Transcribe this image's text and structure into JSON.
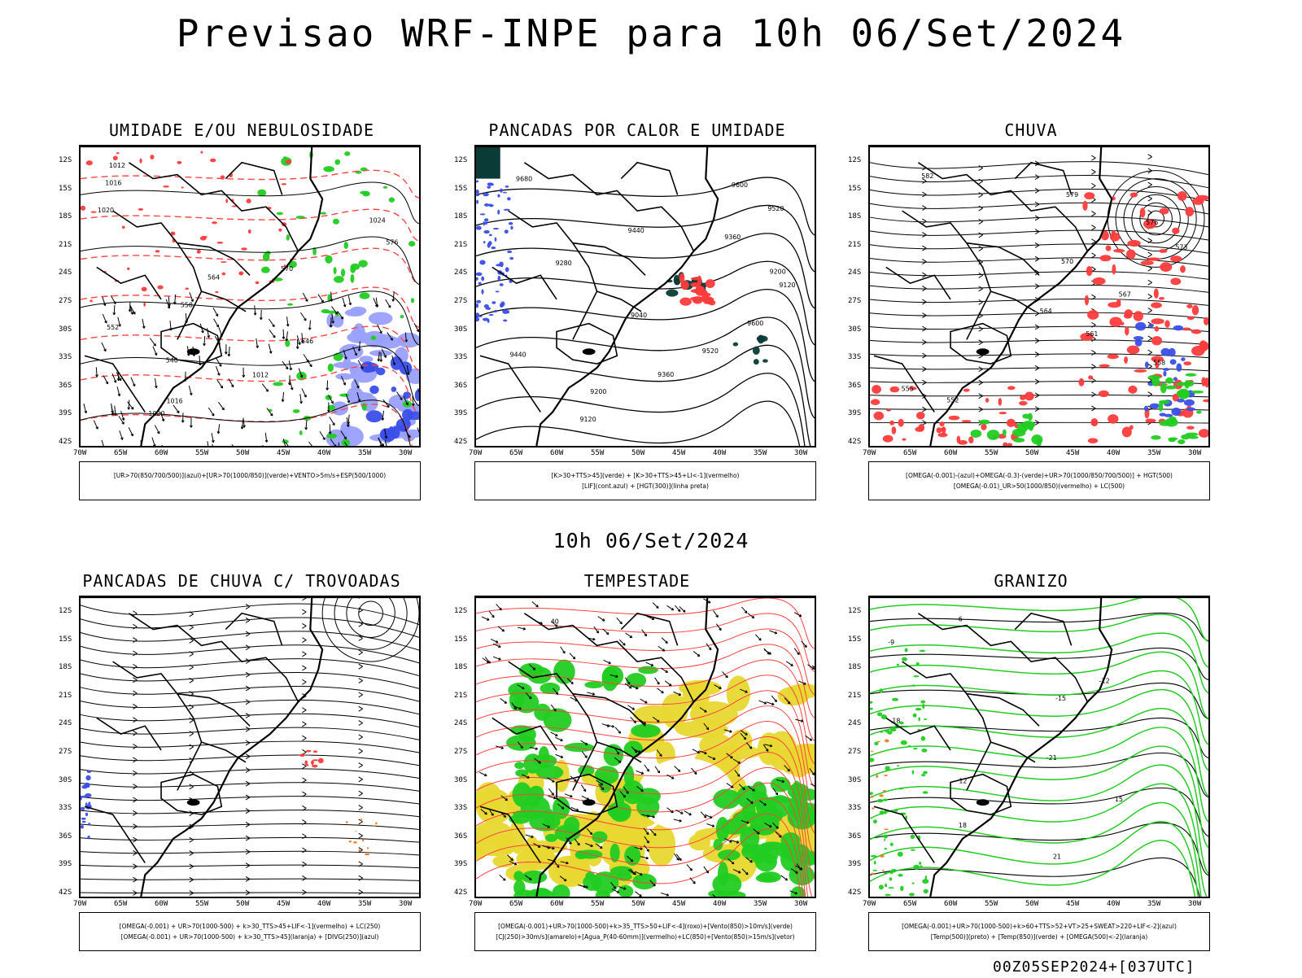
{
  "header": {
    "title": "Previsao WRF-INPE  para 10h 06/Set/2024",
    "middle_date": "10h 06/Set/2024",
    "footer": "00Z05SEP2024+[037UTC]"
  },
  "axes": {
    "lat_labels": [
      "12S",
      "15S",
      "18S",
      "21S",
      "24S",
      "27S",
      "30S",
      "33S",
      "36S",
      "39S",
      "42S"
    ],
    "lon_labels": [
      "70W",
      "65W",
      "60W",
      "55W",
      "50W",
      "45W",
      "40W",
      "35W",
      "30W"
    ]
  },
  "colors": {
    "red": "#ff3b3b",
    "green": "#22cc22",
    "blue": "#3a4ee8",
    "lightblue": "#9aa0ff",
    "yellow": "#e8d830",
    "orange": "#f07a20",
    "darkteal": "#0b3b36"
  },
  "panels": [
    {
      "id": "umidade",
      "title": "UMIDADE E/OU NEBULOSIDADE",
      "legend": [
        "[UR>70(850/700/500)](azul)+[UR>70(1000/850)](verde)+VENTO>5m/s+ESP(500/1000)"
      ],
      "contour_labels": [
        "1012",
        "1016",
        "1020",
        "1024",
        "576",
        "570",
        "564",
        "558",
        "552",
        "546",
        "540",
        "1012",
        "1016",
        "1020"
      ]
    },
    {
      "id": "pancadas-calor",
      "title": "PANCADAS POR CALOR E UMIDADE",
      "legend": [
        "[K>30+TTS>45](verde) + [K>30+TTS>45+LI<-1](vermelho)",
        "[LIF](cont.azul) + [HGT(300)](linha preta)"
      ],
      "contour_labels": [
        "9680",
        "9600",
        "9520",
        "9440",
        "9360",
        "9280",
        "9200",
        "9120",
        "9040",
        "9600",
        "9520",
        "9440",
        "9360",
        "9200",
        "9120"
      ]
    },
    {
      "id": "chuva",
      "title": "CHUVA",
      "legend": [
        "[OMEGA(-0.001)-(azul)+OMEGA(-0.3)-(verde)+UR>70(1000/850/700/500)] + HGT(500)",
        "[OMEGA(-0.01)_UR>50(1000/850)(vermelho) + LC(500)"
      ],
      "contour_labels": [
        "582",
        "579",
        "576",
        "573",
        "570",
        "567",
        "564",
        "561",
        "558",
        "555",
        "552"
      ]
    },
    {
      "id": "pancadas-trovoadas",
      "title": "PANCADAS DE CHUVA C/ TROVOADAS",
      "legend": [
        "[OMEGA(-0.001) + UR>70(1000-500) + k>30_TTS>45+LIF<-1](vermelho) + LC(250)",
        "[OMEGA(-0.001) + UR>70(1000-500) + k>30_TTS>45](laranja) + [DIVG(250)](azul)"
      ]
    },
    {
      "id": "tempestade",
      "title": "TEMPESTADE",
      "legend": [
        "[OMEGA(-0.001)+UR>70(1000-500)+k>35_TTS>50+LIF<-4](roxo)+[Vento(850)>10m/s](verde)",
        "[CJ(250)>30m/s](amarelo)+[Agua_P(40-60mm)](vermelho)+LC(850)+[Vento(850)>15m/s](vetor)"
      ],
      "contour_labels": [
        "40"
      ]
    },
    {
      "id": "granizo",
      "title": "GRANIZO",
      "legend": [
        "[OMEGA(-0.001)+UR>70(1000-500)+k>60+TTS>52+VT>25+SWEAT>220+LIF<-2](azul)",
        "[Temp(500)](preto) + [Temp(850)](verde) + [OMEGA(500)<-2](laranja)"
      ],
      "contour_labels": [
        "-6",
        "-9",
        "-12",
        "-15",
        "-18",
        "-21",
        "12",
        "15",
        "18",
        "21"
      ]
    }
  ]
}
